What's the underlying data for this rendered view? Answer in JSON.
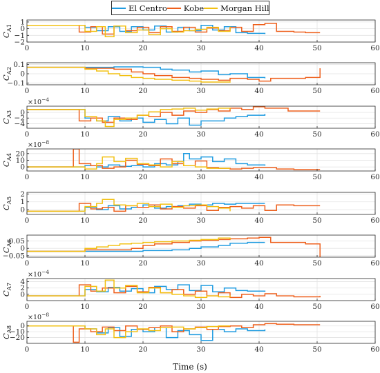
{
  "legend": {
    "items": [
      {
        "label": "El Centro",
        "color": "#1f9be0"
      },
      {
        "label": "Kobe",
        "color": "#ee5f1b"
      },
      {
        "label": "Morgan Hill",
        "color": "#f2c012"
      }
    ]
  },
  "x_axis_label": "Time (s)",
  "chart_data": [
    {
      "type": "line",
      "ylabel": "C_A1",
      "xlim": [
        0,
        60
      ],
      "ylim": [
        -2,
        1.3
      ],
      "yticks": [
        1,
        0,
        -1,
        -2
      ],
      "exponent": "",
      "grid": true,
      "series": [
        {
          "name": "El Centro",
          "x": [
            0,
            7.5,
            10,
            12,
            14,
            16,
            18,
            20,
            22,
            24,
            26,
            28,
            30,
            32,
            34,
            36,
            38,
            41
          ],
          "y": [
            0.5,
            0.5,
            0.2,
            -0.3,
            0.3,
            -0.4,
            0.3,
            -0.2,
            0.4,
            -0.5,
            0.2,
            -0.3,
            0.5,
            -0.2,
            0.3,
            -0.6,
            -0.7,
            -0.8
          ]
        },
        {
          "name": "Kobe",
          "x": [
            0,
            7.5,
            9,
            11,
            13,
            15,
            17,
            19,
            21,
            23,
            25,
            27,
            29,
            31,
            33,
            35,
            37,
            39,
            41,
            43,
            46,
            48,
            50.5
          ],
          "y": [
            0.5,
            0.5,
            -0.5,
            0.3,
            -0.8,
            0.4,
            -0.3,
            0.2,
            -0.6,
            0.3,
            -0.4,
            0.2,
            -0.5,
            0.1,
            -0.3,
            0.2,
            -0.4,
            0.6,
            0.8,
            -0.4,
            -0.5,
            -0.6,
            -0.6
          ]
        },
        {
          "name": "Morgan Hill",
          "x": [
            0,
            7.5,
            10,
            12,
            13.5,
            15,
            17,
            19,
            21,
            23,
            25,
            27,
            29,
            31,
            33,
            35
          ],
          "y": [
            0.5,
            0.5,
            -0.4,
            0.3,
            -1.2,
            0.4,
            -0.6,
            -0.2,
            -0.9,
            0.0,
            -0.5,
            -0.3,
            -0.1,
            0.2,
            -0.4,
            0.3
          ]
        }
      ]
    },
    {
      "type": "line",
      "ylabel": "C_A2",
      "xlim": [
        0,
        60
      ],
      "ylim": [
        -0.12,
        0.12
      ],
      "yticks": [
        0.1,
        0,
        -0.1
      ],
      "exponent": "",
      "grid": true,
      "series": [
        {
          "name": "El Centro",
          "x": [
            0,
            7.5,
            10,
            15,
            20,
            23,
            25,
            28,
            30,
            33,
            35,
            38,
            41
          ],
          "y": [
            0.07,
            0.07,
            0.07,
            0.075,
            0.07,
            0.05,
            0.04,
            0.02,
            0.03,
            -0.01,
            0.0,
            -0.04,
            -0.05
          ]
        },
        {
          "name": "Kobe",
          "x": [
            0,
            7.5,
            10,
            15,
            18,
            20,
            22,
            25,
            28,
            30,
            33,
            35,
            38,
            40,
            42,
            45,
            48,
            50.5
          ],
          "y": [
            0.07,
            0.07,
            0.06,
            0.05,
            0.02,
            0.0,
            -0.02,
            -0.04,
            -0.05,
            -0.06,
            -0.07,
            -0.05,
            -0.06,
            -0.08,
            -0.05,
            -0.05,
            -0.04,
            0.06
          ]
        },
        {
          "name": "Morgan Hill",
          "x": [
            0,
            7.5,
            10,
            12,
            14,
            16,
            18,
            20,
            22,
            25,
            28,
            30,
            33,
            35
          ],
          "y": [
            0.07,
            0.07,
            0.05,
            0.03,
            0.0,
            -0.02,
            -0.04,
            -0.05,
            -0.06,
            -0.07,
            -0.08,
            -0.09,
            -0.09,
            -0.08
          ]
        }
      ]
    },
    {
      "type": "line",
      "ylabel": "C_A3",
      "xlim": [
        0,
        60
      ],
      "ylim": [
        -5.6,
        2.2
      ],
      "yticks": [
        0,
        -2,
        -4
      ],
      "exponent": "×10^−4",
      "grid": true,
      "series": [
        {
          "name": "El Centro",
          "x": [
            0,
            7.5,
            10,
            12,
            14,
            16,
            18,
            20,
            22,
            24,
            26,
            28,
            30,
            32,
            34,
            36,
            38,
            41
          ],
          "y": [
            1,
            1,
            -2,
            -3,
            -1.5,
            -3,
            -2,
            -3.5,
            -2.5,
            -4,
            -2,
            -4.5,
            -3,
            -3,
            -2,
            -1.5,
            -1,
            -0.5
          ]
        },
        {
          "name": "Kobe",
          "x": [
            0,
            7.5,
            9,
            11,
            13,
            15,
            17,
            19,
            21,
            23,
            25,
            27,
            29,
            31,
            33,
            35,
            37,
            39,
            41,
            45,
            50.5
          ],
          "y": [
            1,
            1,
            -3,
            -2,
            -3.5,
            -2,
            -2.5,
            -1,
            -1.5,
            0,
            -1,
            0.5,
            0,
            1,
            0.5,
            1.5,
            1,
            2,
            1.5,
            0.5,
            0.5
          ]
        },
        {
          "name": "Morgan Hill",
          "x": [
            0,
            7.5,
            10,
            12,
            13.5,
            15,
            17,
            19,
            21,
            23,
            25,
            27,
            29,
            31,
            33,
            35
          ],
          "y": [
            1,
            1,
            -1.5,
            -3,
            -5,
            -2.5,
            -2,
            -1,
            0.2,
            1,
            1.2,
            1.5,
            0.8,
            1.2,
            1.5,
            1
          ]
        }
      ]
    },
    {
      "type": "line",
      "ylabel": "C_A4",
      "xlim": [
        0,
        60
      ],
      "ylim": [
        -6,
        27
      ],
      "yticks": [
        20,
        10,
        0
      ],
      "exponent": "×10^−8",
      "grid": true,
      "series": [
        {
          "name": "El Centro",
          "x": [
            0,
            7.5,
            10,
            12,
            14,
            16,
            18,
            20,
            22,
            24,
            26,
            27,
            28,
            30,
            32,
            34,
            36,
            38,
            41
          ],
          "y": [
            0,
            0,
            2,
            0,
            3,
            1,
            2,
            0,
            5,
            3,
            8,
            20,
            12,
            15,
            8,
            12,
            5,
            3,
            2
          ]
        },
        {
          "name": "Kobe",
          "x": [
            0,
            7.5,
            8,
            9,
            11,
            13,
            15,
            17,
            19,
            21,
            23,
            25,
            27,
            29,
            31,
            33,
            35,
            37,
            39,
            41,
            43,
            46,
            50.5
          ],
          "y": [
            0,
            0,
            27,
            5,
            2,
            -2,
            0,
            10,
            4,
            2,
            12,
            5,
            2,
            9,
            -1,
            -2,
            -3,
            -2,
            -1,
            -1,
            -3,
            -4,
            -4
          ]
        },
        {
          "name": "Morgan Hill",
          "x": [
            0,
            7.5,
            10,
            12,
            13,
            15,
            17,
            19,
            21,
            23,
            25,
            27,
            29,
            31,
            33,
            35
          ],
          "y": [
            0,
            0,
            -3,
            5,
            15,
            8,
            13,
            5,
            3,
            0,
            8,
            2,
            0,
            -2,
            -2,
            -2
          ]
        }
      ]
    },
    {
      "type": "line",
      "ylabel": "C_A5",
      "xlim": [
        0,
        60
      ],
      "ylim": [
        -0.6,
        2.2
      ],
      "yticks": [
        2,
        1,
        0
      ],
      "exponent": "",
      "grid": true,
      "series": [
        {
          "name": "El Centro",
          "x": [
            0,
            7.5,
            10,
            12,
            14,
            16,
            18,
            20,
            22,
            24,
            26,
            28,
            30,
            32,
            34,
            36,
            38,
            41
          ],
          "y": [
            -0.2,
            -0.2,
            0.3,
            0.0,
            0.5,
            0.1,
            0.3,
            0.6,
            0.2,
            0.4,
            0.5,
            0.7,
            0.6,
            0.8,
            0.7,
            0.8,
            0.8,
            0.8
          ]
        },
        {
          "name": "Kobe",
          "x": [
            0,
            7.5,
            9,
            11,
            13,
            15,
            17,
            19,
            21,
            23,
            25,
            27,
            29,
            31,
            33,
            35,
            37,
            39,
            41,
            43,
            46,
            50.5
          ],
          "y": [
            -0.2,
            -0.2,
            0.8,
            0.1,
            0.3,
            -0.2,
            0.5,
            0.3,
            0.6,
            0.1,
            0.4,
            0.2,
            0.5,
            -0.1,
            0.3,
            0.4,
            0.2,
            0.5,
            -0.1,
            0.6,
            0.5,
            0.5
          ]
        },
        {
          "name": "Morgan Hill",
          "x": [
            0,
            7.5,
            10,
            12,
            13,
            15,
            17,
            19,
            21,
            23,
            25,
            27,
            29,
            31,
            33,
            35
          ],
          "y": [
            -0.2,
            -0.2,
            0.4,
            0.8,
            1.3,
            0.6,
            0.5,
            0.8,
            0.4,
            0.7,
            0.3,
            0.5,
            0.6,
            0.4,
            0.2,
            -0.2
          ]
        }
      ]
    },
    {
      "type": "line",
      "ylabel": "C_A6",
      "xlim": [
        0,
        60
      ],
      "ylim": [
        -0.06,
        0.09
      ],
      "yticks": [
        0.05,
        0,
        -0.05
      ],
      "exponent": "",
      "grid": true,
      "series": [
        {
          "name": "El Centro",
          "x": [
            0,
            7.5,
            10,
            15,
            20,
            25,
            28,
            30,
            33,
            35,
            38,
            41
          ],
          "y": [
            -0.02,
            -0.02,
            -0.02,
            -0.02,
            -0.015,
            -0.01,
            0.0,
            0.01,
            0.02,
            0.035,
            0.04,
            0.04
          ]
        },
        {
          "name": "Kobe",
          "x": [
            0,
            7.5,
            10,
            14,
            18,
            20,
            22,
            25,
            28,
            30,
            33,
            35,
            38,
            40,
            42,
            45,
            48,
            50.5
          ],
          "y": [
            -0.02,
            -0.02,
            -0.01,
            -0.01,
            0.0,
            0.02,
            0.03,
            0.04,
            0.05,
            0.055,
            0.06,
            0.065,
            0.07,
            0.075,
            0.04,
            0.04,
            0.03,
            -0.06
          ]
        },
        {
          "name": "Morgan Hill",
          "x": [
            0,
            7.5,
            10,
            12,
            14,
            16,
            18,
            20,
            22,
            25,
            28,
            30,
            33,
            35
          ],
          "y": [
            -0.02,
            -0.02,
            0.0,
            0.01,
            0.02,
            0.03,
            0.035,
            0.04,
            0.045,
            0.05,
            0.055,
            0.06,
            0.07,
            0.06
          ]
        }
      ]
    },
    {
      "type": "line",
      "ylabel": "C_A7",
      "xlim": [
        0,
        60
      ],
      "ylim": [
        -2,
        5
      ],
      "yticks": [
        4,
        2,
        0
      ],
      "exponent": "×10^−4",
      "grid": true,
      "series": [
        {
          "name": "El Centro",
          "x": [
            0,
            7.5,
            10,
            12,
            14,
            16,
            18,
            20,
            22,
            24,
            26,
            28,
            30,
            32,
            34,
            36,
            38,
            41
          ],
          "y": [
            -0.5,
            -0.5,
            1.5,
            0.8,
            2.2,
            1.0,
            1.8,
            0.5,
            2.5,
            1.5,
            3.0,
            1.2,
            2.8,
            0.8,
            2.0,
            1.2,
            1.0,
            0.8
          ]
        },
        {
          "name": "Kobe",
          "x": [
            0,
            7.5,
            9,
            11,
            13,
            15,
            17,
            19,
            21,
            23,
            25,
            27,
            29,
            31,
            33,
            35,
            37,
            39,
            41,
            43,
            46,
            50.5
          ],
          "y": [
            -0.5,
            -0.5,
            3.0,
            1.0,
            2.0,
            0.5,
            2.5,
            0.8,
            2.2,
            0.5,
            1.5,
            0.0,
            1.0,
            -0.5,
            0.5,
            -1.0,
            0.0,
            -0.5,
            0.2,
            -0.5,
            -0.8,
            -0.5
          ]
        },
        {
          "name": "Morgan Hill",
          "x": [
            0,
            7.5,
            10,
            12,
            13.5,
            15,
            17,
            19,
            21,
            23,
            25,
            27,
            29,
            31,
            33,
            35
          ],
          "y": [
            -0.5,
            -0.5,
            2.5,
            1.0,
            4.5,
            2.0,
            2.8,
            0.5,
            2.0,
            0.5,
            0.0,
            -0.5,
            -1.0,
            -0.5,
            -0.8,
            -0.3
          ]
        }
      ]
    },
    {
      "type": "line",
      "ylabel": "C_A8",
      "xlim": [
        0,
        60
      ],
      "ylim": [
        -30,
        8
      ],
      "yticks": [
        0,
        -10,
        -20
      ],
      "exponent": "×10^−8",
      "grid": true,
      "series": [
        {
          "name": "El Centro",
          "x": [
            0,
            7.5,
            10,
            12,
            14,
            16,
            18,
            20,
            22,
            24,
            26,
            28,
            30,
            32,
            34,
            36,
            38,
            41
          ],
          "y": [
            0,
            0,
            -5,
            -12,
            -3,
            -18,
            -6,
            -10,
            -3,
            -20,
            -8,
            -15,
            -25,
            -6,
            -10,
            -5,
            -8,
            -6
          ]
        },
        {
          "name": "Kobe",
          "x": [
            0,
            7.5,
            8,
            9,
            11,
            13,
            15,
            17,
            19,
            21,
            23,
            25,
            27,
            29,
            31,
            33,
            35,
            37,
            39,
            41,
            43,
            46,
            50.5
          ],
          "y": [
            0,
            0,
            -28,
            -5,
            -10,
            -2,
            -8,
            0,
            -6,
            -3,
            0,
            -10,
            -5,
            -2,
            -6,
            -1,
            0,
            -3,
            2,
            4,
            3,
            2,
            2
          ]
        },
        {
          "name": "Morgan Hill",
          "x": [
            0,
            7.5,
            10,
            12,
            13.5,
            15,
            17,
            19,
            21,
            23,
            25,
            27,
            29,
            31,
            33,
            35
          ],
          "y": [
            0,
            0,
            -5,
            -15,
            -5,
            -20,
            -10,
            -5,
            -8,
            -3,
            -2,
            -5,
            -3,
            -1,
            0,
            0
          ]
        }
      ]
    }
  ]
}
